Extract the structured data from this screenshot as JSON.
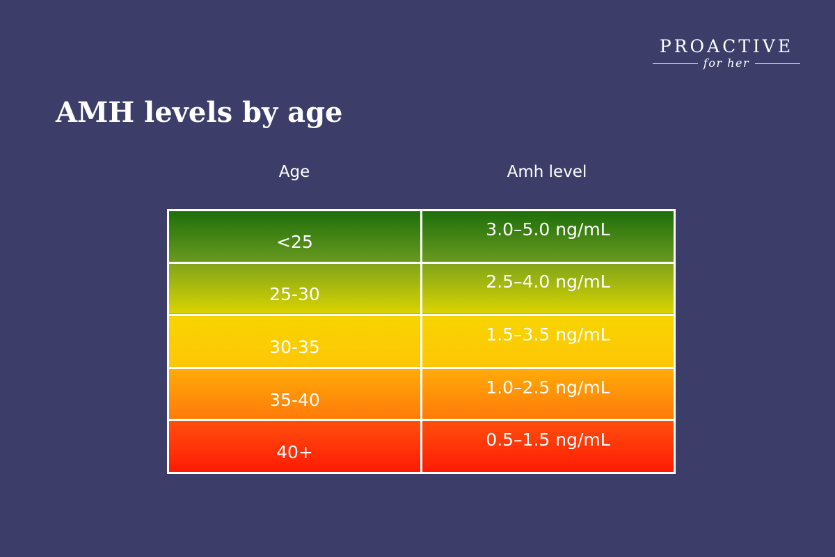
{
  "brand": {
    "name": "PROACTIVE",
    "tagline": "for her"
  },
  "chart_data": {
    "type": "table",
    "title": "AMH levels by age",
    "columns": [
      "Age",
      "Amh level"
    ],
    "rows": [
      {
        "age": "<25",
        "level": "3.0–5.0 ng/mL",
        "color": "#3f7f12"
      },
      {
        "age": "25-30",
        "level": "2.5–4.0 ng/mL",
        "color": "#b8c20a"
      },
      {
        "age": "30-35",
        "level": "1.5–3.5 ng/mL",
        "color": "#fdd003"
      },
      {
        "age": "35-40",
        "level": "1.0–2.5 ng/mL",
        "color": "#ff940a"
      },
      {
        "age": "40+",
        "level": "0.5–1.5 ng/mL",
        "color": "#ff3008"
      }
    ]
  },
  "colors": {
    "background": "#3c3d69",
    "text": "#ffffff",
    "border": "#ffffff"
  }
}
